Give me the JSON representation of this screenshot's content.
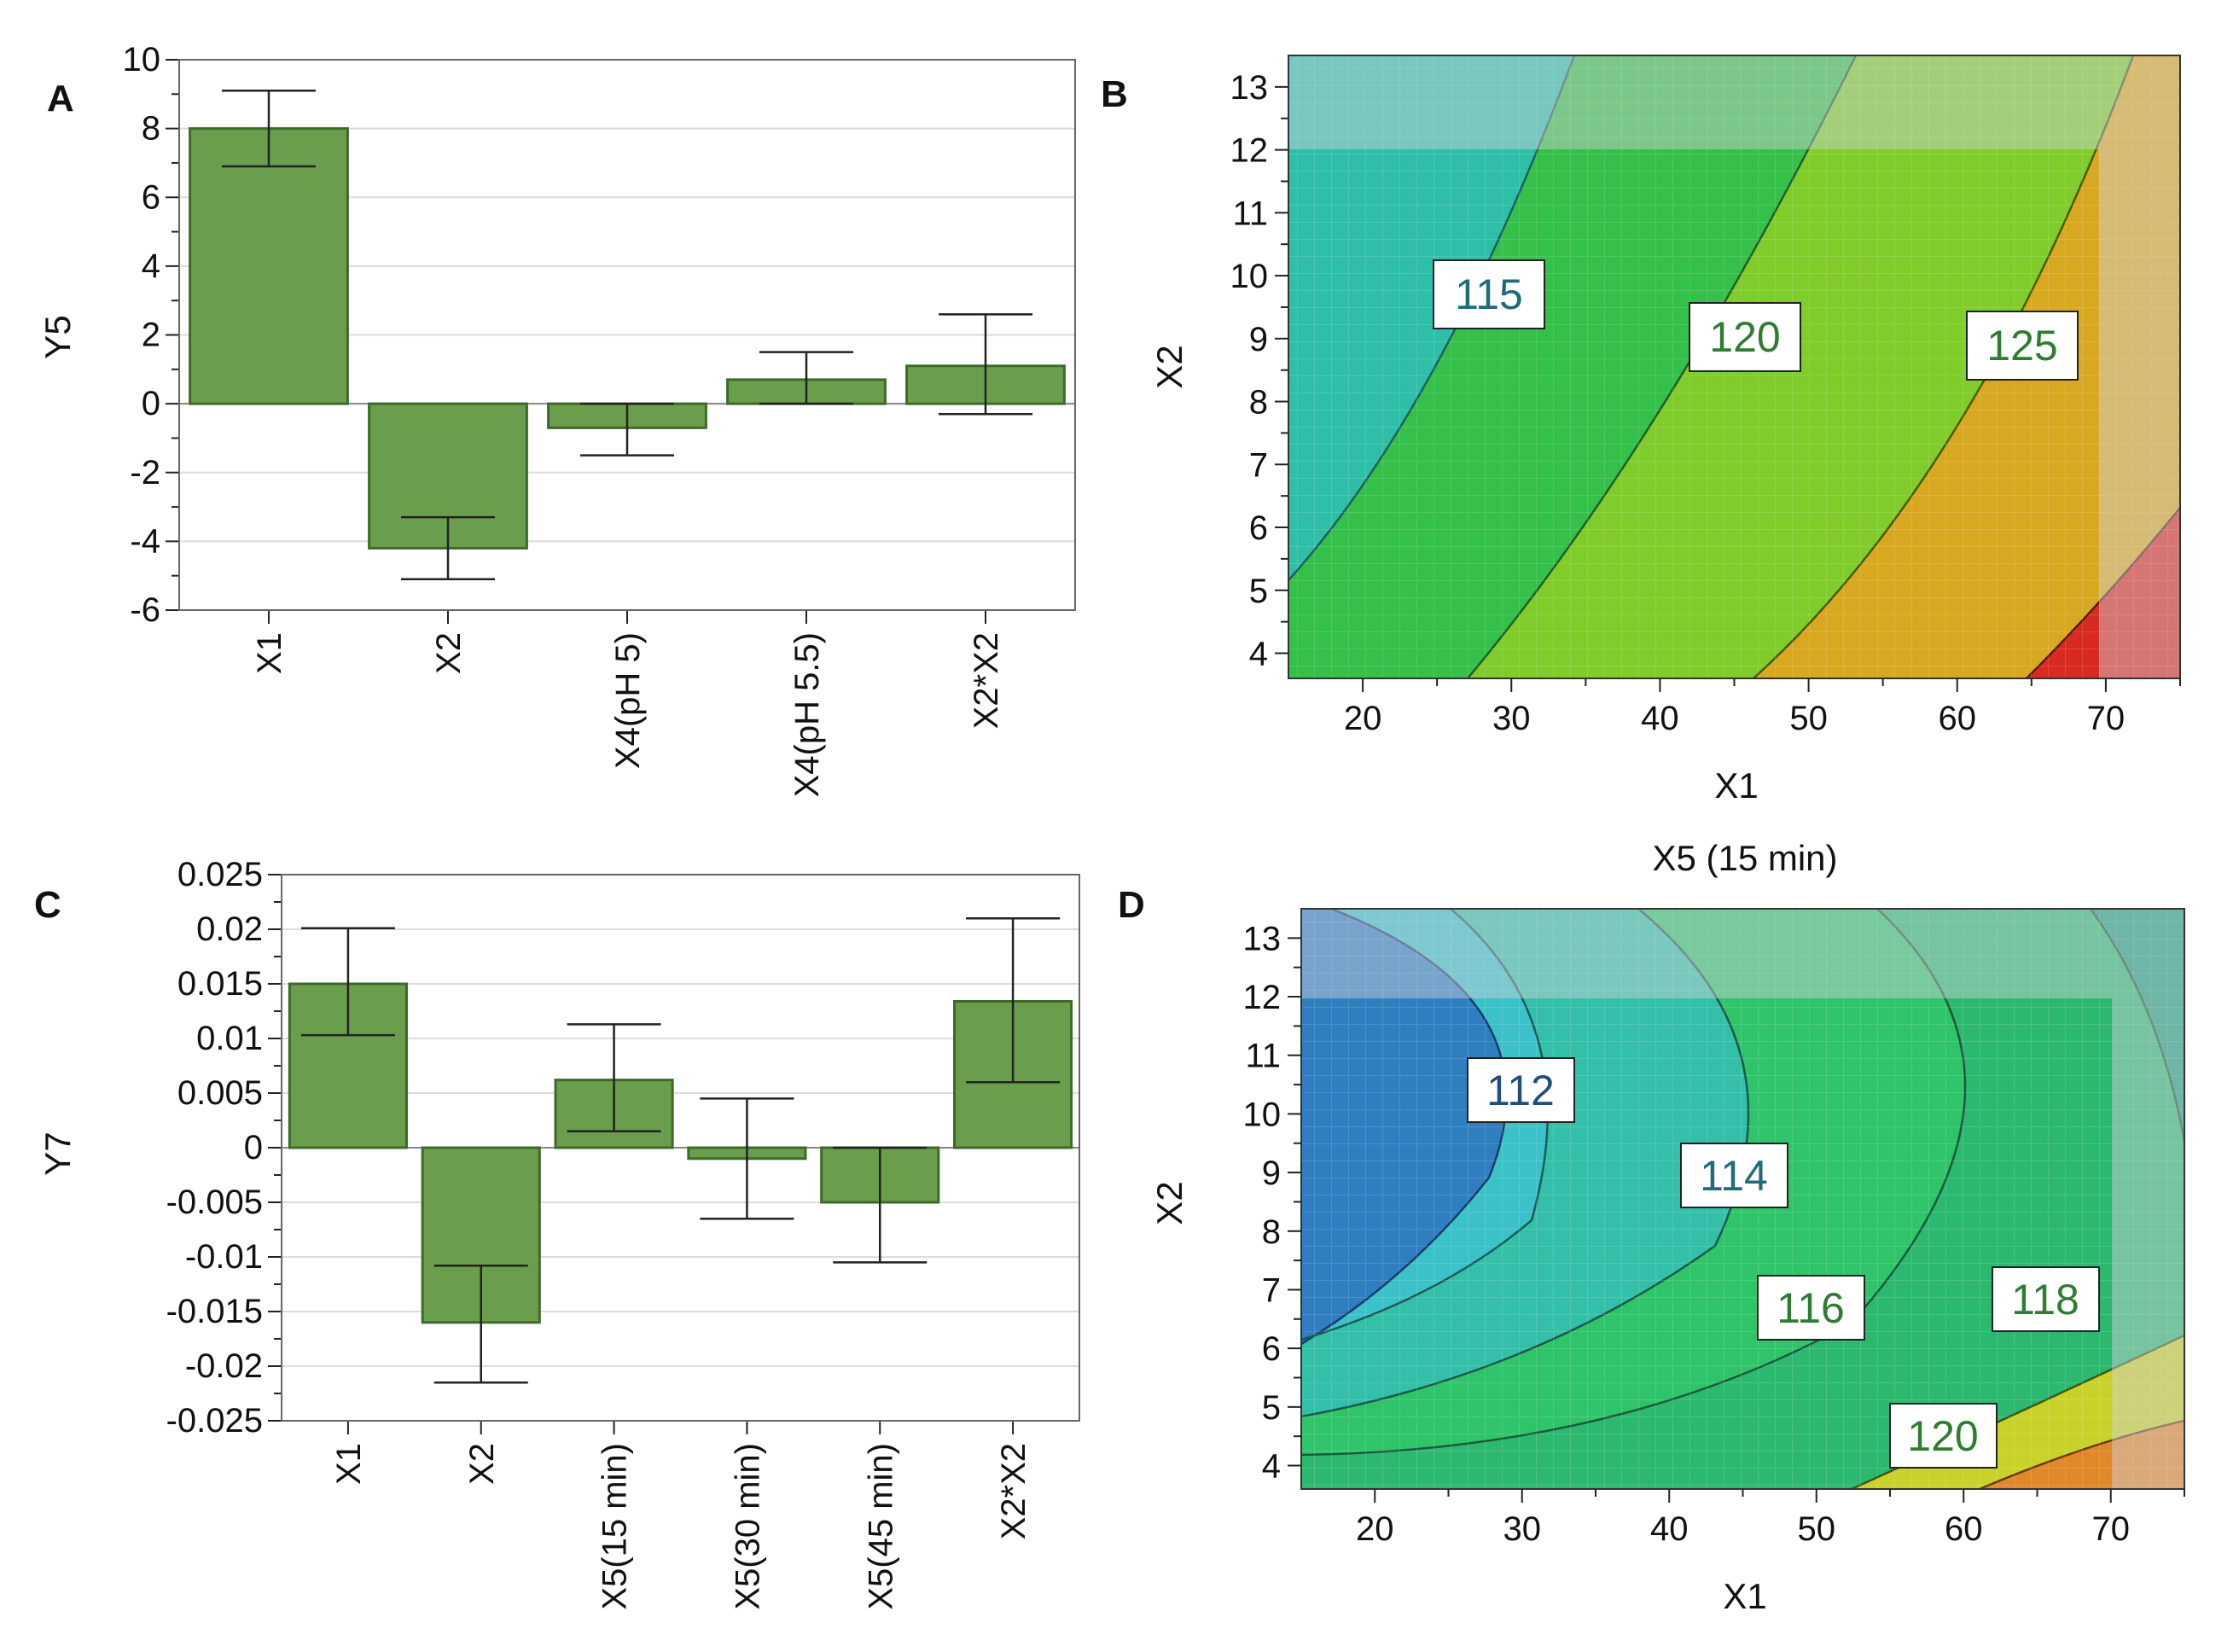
{
  "colors": {
    "bar_fill": "#6a9e4c",
    "bar_stroke": "#3d6a2a",
    "grid": "#dcdcdc",
    "axis": "#222222",
    "contour_label_text": "#1e6b7a",
    "contour_label_text_green": "#2e7d32"
  },
  "chart_data": [
    {
      "panel": "A",
      "type": "bar",
      "ylabel": "Y5",
      "ylim": [
        -6,
        10
      ],
      "yticks": [
        "10",
        "8",
        "6",
        "4",
        "2",
        "0",
        "-2",
        "-4",
        "-6"
      ],
      "categories": [
        "X1",
        "X2",
        "X4(pH 5)",
        "X4(pH 5.5)",
        "X2*X2"
      ],
      "values": [
        8.0,
        -4.2,
        -0.7,
        0.7,
        1.1
      ],
      "error_low": [
        6.9,
        -5.1,
        -1.5,
        0.0,
        -0.3
      ],
      "error_high": [
        9.1,
        -3.3,
        0.0,
        1.5,
        2.6
      ]
    },
    {
      "panel": "B",
      "type": "contour",
      "xlabel": "X1",
      "ylabel": "X2",
      "xticks": [
        "20",
        "30",
        "40",
        "50",
        "60",
        "70"
      ],
      "yticks": [
        "13",
        "12",
        "11",
        "10",
        "9",
        "8",
        "7",
        "6",
        "5",
        "4"
      ],
      "xlim": [
        15,
        75
      ],
      "ylim": [
        3.6,
        13.5
      ],
      "contour_levels": [
        "115",
        "120",
        "125"
      ],
      "bands": [
        "<115",
        "115-120",
        "120-125",
        "125-130",
        ">130"
      ]
    },
    {
      "panel": "C",
      "type": "bar",
      "ylabel": "Y7",
      "ylim": [
        -0.025,
        0.025
      ],
      "yticks": [
        "0.025",
        "0.02",
        "0.015",
        "0.01",
        "0.005",
        "0",
        "-0.005",
        "-0.01",
        "-0.015",
        "-0.02",
        "-0.025"
      ],
      "categories": [
        "X1",
        "X2",
        "X5(15 min)",
        "X5(30 min)",
        "X5(45 min)",
        "X2*X2"
      ],
      "values": [
        0.015,
        -0.016,
        0.0062,
        -0.001,
        -0.005,
        0.0134
      ],
      "error_low": [
        0.0103,
        -0.0215,
        0.0015,
        -0.0065,
        -0.0105,
        0.006
      ],
      "error_high": [
        0.0201,
        -0.0108,
        0.0113,
        0.0045,
        0.0,
        0.021
      ]
    },
    {
      "panel": "D",
      "type": "contour",
      "title": "X5 (15 min)",
      "xlabel": "X1",
      "ylabel": "X2",
      "xticks": [
        "20",
        "30",
        "40",
        "50",
        "60",
        "70"
      ],
      "yticks": [
        "13",
        "12",
        "11",
        "10",
        "9",
        "8",
        "7",
        "6",
        "5",
        "4"
      ],
      "xlim": [
        15,
        75
      ],
      "ylim": [
        3.6,
        13.5
      ],
      "contour_levels": [
        "112",
        "114",
        "116",
        "118",
        "120"
      ],
      "bands": [
        "<112",
        "112-114",
        "114-116",
        "116-118",
        "118-120",
        "120-122",
        ">122"
      ]
    }
  ]
}
